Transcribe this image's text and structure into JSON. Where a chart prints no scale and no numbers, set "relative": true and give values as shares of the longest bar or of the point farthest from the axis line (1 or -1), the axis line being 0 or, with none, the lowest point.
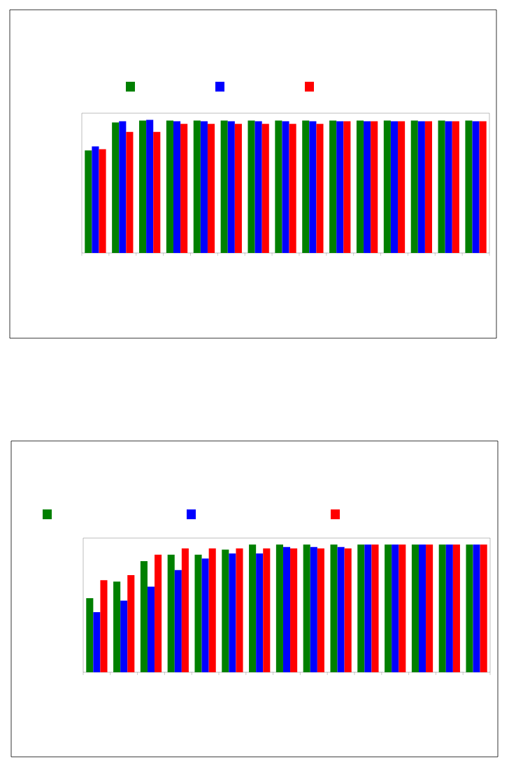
{
  "chart_data": [
    {
      "type": "bar",
      "relative": true,
      "categories": [
        null,
        null,
        null,
        null,
        null,
        null,
        null,
        null,
        null,
        null,
        null,
        null,
        null,
        null,
        null
      ],
      "series": [
        {
          "color": "#008000",
          "values": [
            0.77,
            0.98,
            0.995,
            0.995,
            0.995,
            0.995,
            0.995,
            0.995,
            0.995,
            0.995,
            0.995,
            0.995,
            0.995,
            0.995,
            0.995
          ]
        },
        {
          "color": "#0000ff",
          "values": [
            0.8,
            0.99,
            1.0,
            0.99,
            0.99,
            0.99,
            0.99,
            0.99,
            0.99,
            0.99,
            0.99,
            0.99,
            0.99,
            0.99,
            0.99
          ]
        },
        {
          "color": "#ff0000",
          "values": [
            0.78,
            0.91,
            0.91,
            0.97,
            0.97,
            0.97,
            0.97,
            0.97,
            0.97,
            0.99,
            0.99,
            0.99,
            0.99,
            0.99,
            0.99
          ]
        }
      ]
    },
    {
      "type": "bar",
      "relative": true,
      "categories": [
        null,
        null,
        null,
        null,
        null,
        null,
        null,
        null,
        null,
        null,
        null,
        null,
        null,
        null,
        null
      ],
      "series": [
        {
          "color": "#008000",
          "values": [
            0.58,
            0.71,
            0.87,
            0.92,
            0.92,
            0.96,
            1.0,
            1.0,
            1.0,
            1.0,
            1.0,
            1.0,
            1.0,
            1.0,
            1.0
          ]
        },
        {
          "color": "#0000ff",
          "values": [
            0.47,
            0.56,
            0.67,
            0.8,
            0.89,
            0.93,
            0.93,
            0.98,
            0.98,
            0.98,
            1.0,
            1.0,
            1.0,
            1.0,
            1.0
          ]
        },
        {
          "color": "#ff0000",
          "values": [
            0.72,
            0.76,
            0.92,
            0.97,
            0.97,
            0.97,
            0.97,
            0.97,
            0.97,
            0.97,
            1.0,
            1.0,
            1.0,
            1.0,
            1.0
          ]
        }
      ]
    }
  ]
}
